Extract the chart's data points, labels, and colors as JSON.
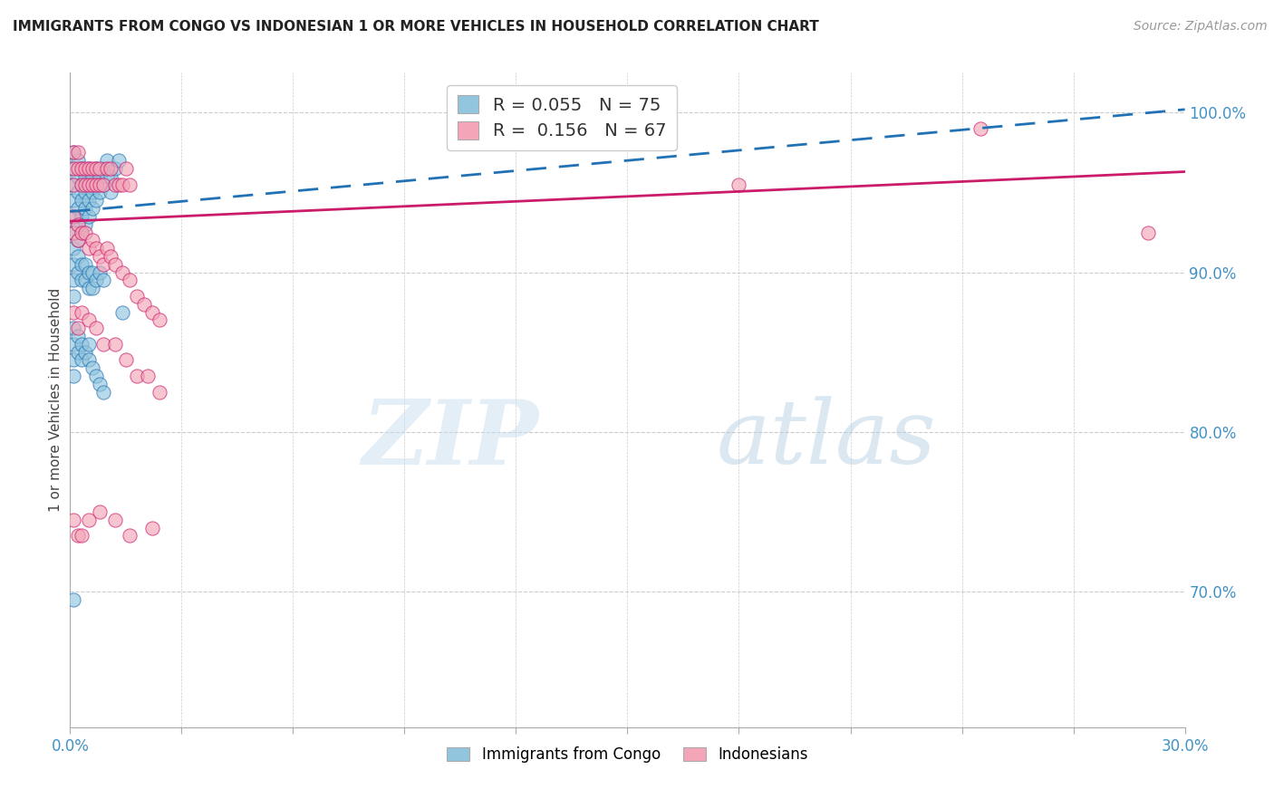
{
  "title": "IMMIGRANTS FROM CONGO VS INDONESIAN 1 OR MORE VEHICLES IN HOUSEHOLD CORRELATION CHART",
  "source": "Source: ZipAtlas.com",
  "ylabel": "1 or more Vehicles in Household",
  "xlim": [
    0.0,
    0.3
  ],
  "ylim": [
    0.615,
    1.025
  ],
  "xticks": [
    0.0,
    0.03,
    0.06,
    0.09,
    0.12,
    0.15,
    0.18,
    0.21,
    0.24,
    0.27,
    0.3
  ],
  "ytick_labels_right": [
    "70.0%",
    "80.0%",
    "90.0%",
    "100.0%"
  ],
  "yticks_right": [
    0.7,
    0.8,
    0.9,
    1.0
  ],
  "congo_R": 0.055,
  "congo_N": 75,
  "indo_R": 0.156,
  "indo_N": 67,
  "blue_color": "#92c5de",
  "pink_color": "#f4a6b8",
  "trend_blue_color": "#2171b5",
  "trend_pink_color": "#cb1b6b",
  "legend_label_congo": "Immigrants from Congo",
  "legend_label_indo": "Indonesians",
  "congo_x": [
    0.001,
    0.001,
    0.001,
    0.001,
    0.001,
    0.001,
    0.001,
    0.002,
    0.002,
    0.002,
    0.002,
    0.002,
    0.002,
    0.003,
    0.003,
    0.003,
    0.003,
    0.003,
    0.004,
    0.004,
    0.004,
    0.004,
    0.005,
    0.005,
    0.005,
    0.005,
    0.006,
    0.006,
    0.006,
    0.007,
    0.007,
    0.007,
    0.008,
    0.008,
    0.009,
    0.009,
    0.01,
    0.01,
    0.011,
    0.011,
    0.012,
    0.013,
    0.001,
    0.001,
    0.001,
    0.002,
    0.002,
    0.003,
    0.003,
    0.004,
    0.004,
    0.005,
    0.005,
    0.006,
    0.006,
    0.007,
    0.008,
    0.009,
    0.001,
    0.001,
    0.001,
    0.001,
    0.002,
    0.002,
    0.003,
    0.003,
    0.004,
    0.005,
    0.005,
    0.006,
    0.007,
    0.008,
    0.009,
    0.001,
    0.014
  ],
  "congo_y": [
    0.975,
    0.965,
    0.955,
    0.945,
    0.935,
    0.925,
    0.915,
    0.97,
    0.96,
    0.95,
    0.94,
    0.93,
    0.92,
    0.965,
    0.955,
    0.945,
    0.935,
    0.925,
    0.96,
    0.95,
    0.94,
    0.93,
    0.965,
    0.955,
    0.945,
    0.935,
    0.96,
    0.95,
    0.94,
    0.965,
    0.955,
    0.945,
    0.96,
    0.95,
    0.965,
    0.955,
    0.97,
    0.96,
    0.96,
    0.95,
    0.965,
    0.97,
    0.905,
    0.895,
    0.885,
    0.91,
    0.9,
    0.905,
    0.895,
    0.905,
    0.895,
    0.9,
    0.89,
    0.9,
    0.89,
    0.895,
    0.9,
    0.895,
    0.865,
    0.855,
    0.845,
    0.835,
    0.86,
    0.85,
    0.855,
    0.845,
    0.85,
    0.855,
    0.845,
    0.84,
    0.835,
    0.83,
    0.825,
    0.695,
    0.875
  ],
  "indo_x": [
    0.001,
    0.001,
    0.001,
    0.002,
    0.002,
    0.003,
    0.003,
    0.004,
    0.004,
    0.005,
    0.005,
    0.006,
    0.006,
    0.007,
    0.007,
    0.008,
    0.008,
    0.009,
    0.01,
    0.011,
    0.012,
    0.013,
    0.014,
    0.015,
    0.016,
    0.001,
    0.001,
    0.002,
    0.002,
    0.003,
    0.004,
    0.005,
    0.006,
    0.007,
    0.008,
    0.009,
    0.01,
    0.011,
    0.012,
    0.014,
    0.016,
    0.018,
    0.02,
    0.022,
    0.024,
    0.001,
    0.002,
    0.003,
    0.005,
    0.007,
    0.009,
    0.012,
    0.015,
    0.018,
    0.021,
    0.024,
    0.001,
    0.002,
    0.003,
    0.005,
    0.008,
    0.012,
    0.016,
    0.022,
    0.18,
    0.245,
    0.29
  ],
  "indo_y": [
    0.975,
    0.965,
    0.955,
    0.975,
    0.965,
    0.965,
    0.955,
    0.965,
    0.955,
    0.965,
    0.955,
    0.965,
    0.955,
    0.965,
    0.955,
    0.965,
    0.955,
    0.955,
    0.965,
    0.965,
    0.955,
    0.955,
    0.955,
    0.965,
    0.955,
    0.935,
    0.925,
    0.93,
    0.92,
    0.925,
    0.925,
    0.915,
    0.92,
    0.915,
    0.91,
    0.905,
    0.915,
    0.91,
    0.905,
    0.9,
    0.895,
    0.885,
    0.88,
    0.875,
    0.87,
    0.875,
    0.865,
    0.875,
    0.87,
    0.865,
    0.855,
    0.855,
    0.845,
    0.835,
    0.835,
    0.825,
    0.745,
    0.735,
    0.735,
    0.745,
    0.75,
    0.745,
    0.735,
    0.74,
    0.955,
    0.99,
    0.925
  ]
}
